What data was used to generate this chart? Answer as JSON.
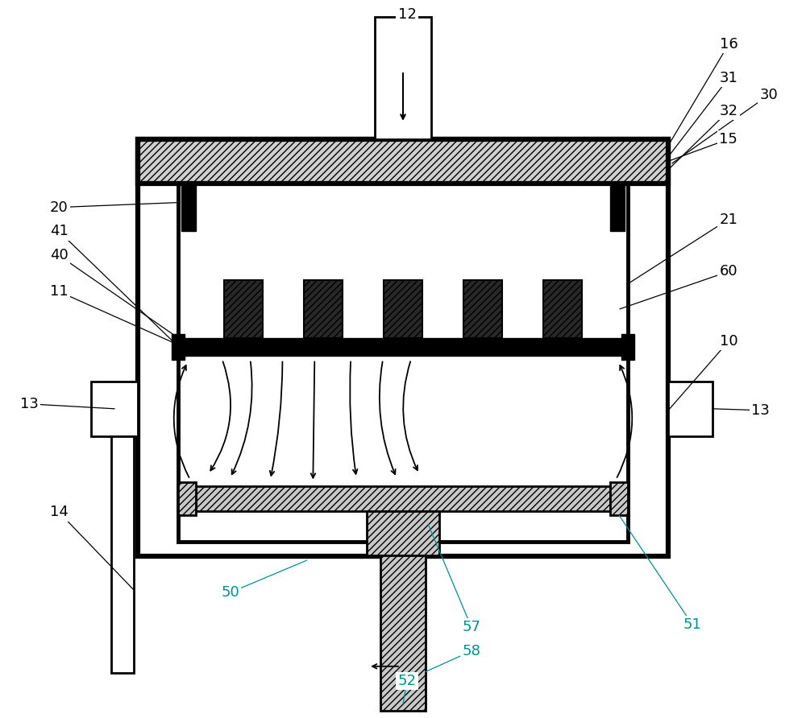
{
  "bg": "#ffffff",
  "black": "#000000",
  "teal": "#008B8B",
  "fig_w": 10.0,
  "fig_h": 8.92,
  "lw_outer": 4.5,
  "lw_inner": 3.5,
  "lw_med": 2.0,
  "lw_thin": 1.5,
  "label_fs": 13,
  "label_black": "#000000",
  "label_teal": "#009090"
}
